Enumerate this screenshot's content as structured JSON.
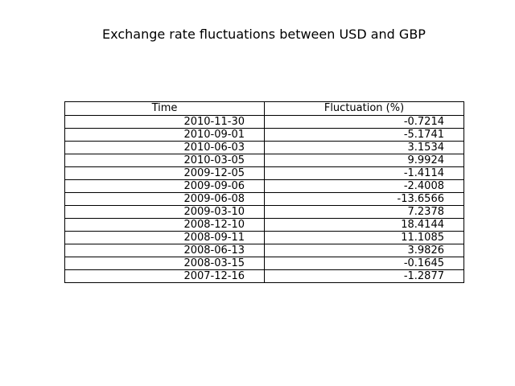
{
  "chart_data": {
    "type": "table",
    "title": "Exchange rate fluctuations between USD and GBP",
    "columns": [
      "Time",
      "Fluctuation (%)"
    ],
    "rows": [
      [
        "2010-11-30",
        "-0.7214"
      ],
      [
        "2010-09-01",
        "-5.1741"
      ],
      [
        "2010-06-03",
        "3.1534"
      ],
      [
        "2010-03-05",
        "9.9924"
      ],
      [
        "2009-12-05",
        "-1.4114"
      ],
      [
        "2009-09-06",
        "-2.4008"
      ],
      [
        "2009-06-08",
        "-13.6566"
      ],
      [
        "2009-03-10",
        "7.2378"
      ],
      [
        "2008-12-10",
        "18.4144"
      ],
      [
        "2008-09-11",
        "11.1085"
      ],
      [
        "2008-06-13",
        "3.9826"
      ],
      [
        "2008-03-15",
        "-0.1645"
      ],
      [
        "2007-12-16",
        "-1.2877"
      ]
    ]
  }
}
